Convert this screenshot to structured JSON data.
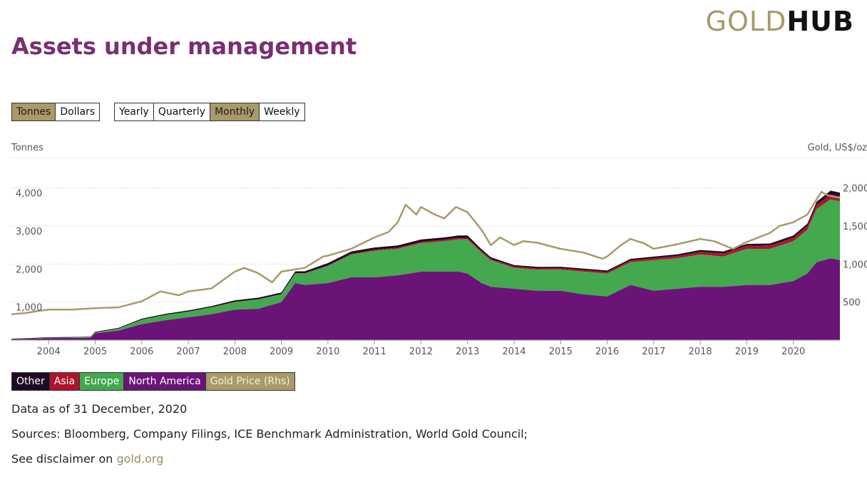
{
  "logo": {
    "part1": "GOLD",
    "part2": "HUB"
  },
  "title": "Assets under management",
  "unit_buttons": [
    {
      "label": "Tonnes",
      "active": true
    },
    {
      "label": "Dollars",
      "active": false
    }
  ],
  "period_buttons": [
    {
      "label": "Yearly",
      "active": false
    },
    {
      "label": "Quarterly",
      "active": false
    },
    {
      "label": "Monthly",
      "active": true
    },
    {
      "label": "Weekly",
      "active": false
    }
  ],
  "legend": [
    {
      "label": "Other",
      "color": "#1e0a24"
    },
    {
      "label": "Asia",
      "color": "#b0132c"
    },
    {
      "label": "Europe",
      "color": "#43a84e"
    },
    {
      "label": "North America",
      "color": "#6b1478"
    },
    {
      "label": "Gold Price (Rhs)",
      "color": "#a99a6a"
    }
  ],
  "footer": {
    "date": "Data as of 31 December, 2020",
    "sources": "Sources: Bloomberg, Company Filings, ICE Benchmark Administration, World Gold Council;",
    "disclaimer": "See disclaimer on",
    "link": "gold.org"
  },
  "chart_data": {
    "type": "area",
    "stacked": true,
    "ylabel": "Tonnes",
    "y2label": "Gold, US$/oz",
    "ylim": [
      0,
      4800
    ],
    "y2lim": [
      0,
      2400
    ],
    "yticks": [
      "1,000",
      "2,000",
      "3,000",
      "4,000"
    ],
    "y2ticks": [
      "500",
      "1,000",
      "1,500",
      "2,000"
    ],
    "x_ticks": [
      "2004",
      "2005",
      "2006",
      "2007",
      "2008",
      "2009",
      "2010",
      "2011",
      "2012",
      "2013",
      "2014",
      "2015",
      "2016",
      "2017",
      "2018",
      "2019",
      "2020"
    ],
    "x": [
      2003.2,
      2004.0,
      2004.9,
      2005.0,
      2005.5,
      2006.0,
      2006.5,
      2007.0,
      2007.5,
      2008.0,
      2008.5,
      2009.0,
      2009.3,
      2009.5,
      2010.0,
      2010.5,
      2011.0,
      2011.5,
      2012.0,
      2012.5,
      2012.8,
      2013.0,
      2013.3,
      2013.5,
      2014.0,
      2014.5,
      2015.0,
      2015.5,
      2016.0,
      2016.5,
      2017.0,
      2017.5,
      2018.0,
      2018.5,
      2019.0,
      2019.5,
      2020.0,
      2020.3,
      2020.5,
      2020.8,
      2021.0
    ],
    "series": [
      {
        "name": "North America",
        "values": [
          20,
          50,
          60,
          180,
          250,
          420,
          520,
          600,
          680,
          800,
          820,
          1000,
          1500,
          1450,
          1500,
          1650,
          1650,
          1700,
          1800,
          1800,
          1800,
          1750,
          1500,
          1400,
          1350,
          1300,
          1300,
          1200,
          1150,
          1450,
          1300,
          1350,
          1400,
          1400,
          1450,
          1450,
          1550,
          1750,
          2050,
          2150,
          2100
        ]
      },
      {
        "name": "Europe",
        "values": [
          5,
          10,
          15,
          20,
          50,
          120,
          140,
          150,
          180,
          200,
          250,
          200,
          250,
          300,
          450,
          600,
          700,
          700,
          750,
          800,
          850,
          900,
          800,
          700,
          550,
          550,
          550,
          600,
          600,
          600,
          800,
          800,
          850,
          800,
          950,
          950,
          1050,
          1150,
          1400,
          1550,
          1550
        ]
      },
      {
        "name": "Asia",
        "values": [
          0,
          0,
          0,
          0,
          0,
          0,
          0,
          0,
          5,
          5,
          5,
          10,
          10,
          10,
          15,
          20,
          25,
          30,
          35,
          40,
          40,
          40,
          40,
          35,
          35,
          35,
          40,
          40,
          40,
          45,
          50,
          60,
          70,
          80,
          80,
          90,
          90,
          100,
          110,
          130,
          130
        ]
      },
      {
        "name": "Other",
        "values": [
          10,
          15,
          15,
          20,
          20,
          25,
          30,
          30,
          30,
          40,
          40,
          40,
          50,
          50,
          60,
          60,
          60,
          60,
          60,
          60,
          60,
          60,
          50,
          45,
          40,
          40,
          40,
          40,
          40,
          40,
          45,
          45,
          50,
          50,
          50,
          50,
          60,
          60,
          80,
          100,
          100
        ]
      }
    ],
    "gold_price": {
      "name": "Gold Price (Rhs)",
      "x": [
        2003.2,
        2003.5,
        2003.8,
        2004.0,
        2004.5,
        2005.0,
        2005.5,
        2006.0,
        2006.4,
        2006.8,
        2007.0,
        2007.5,
        2008.0,
        2008.2,
        2008.5,
        2008.8,
        2009.0,
        2009.5,
        2009.9,
        2010.0,
        2010.5,
        2011.0,
        2011.3,
        2011.5,
        2011.67,
        2011.9,
        2012.0,
        2012.3,
        2012.5,
        2012.75,
        2013.0,
        2013.3,
        2013.5,
        2013.7,
        2014.0,
        2014.2,
        2014.5,
        2015.0,
        2015.5,
        2015.9,
        2016.0,
        2016.3,
        2016.5,
        2016.8,
        2017.0,
        2017.5,
        2018.0,
        2018.3,
        2018.7,
        2019.0,
        2019.5,
        2019.7,
        2020.0,
        2020.3,
        2020.6,
        2020.75,
        2021.0
      ],
      "values": [
        340,
        355,
        385,
        400,
        400,
        420,
        430,
        510,
        640,
        590,
        640,
        680,
        900,
        950,
        880,
        760,
        900,
        950,
        1100,
        1110,
        1200,
        1350,
        1420,
        1550,
        1780,
        1650,
        1750,
        1650,
        1600,
        1750,
        1680,
        1450,
        1250,
        1350,
        1250,
        1300,
        1280,
        1200,
        1150,
        1070,
        1100,
        1250,
        1330,
        1270,
        1200,
        1260,
        1330,
        1300,
        1200,
        1290,
        1410,
        1500,
        1550,
        1650,
        1950,
        1900,
        1870
      ]
    }
  }
}
